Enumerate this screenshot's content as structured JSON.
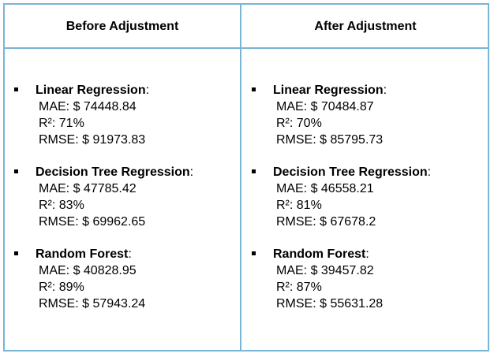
{
  "headers": {
    "before": "Before Adjustment",
    "after": "After Adjustment"
  },
  "before": [
    {
      "name": "Linear Regression",
      "colon": ":",
      "mae": "MAE: $ 74448.84",
      "r2": "R²: 71%",
      "rmse": "RMSE: $ 91973.83"
    },
    {
      "name": "Decision Tree Regression",
      "colon": ":",
      "mae": "MAE: $ 47785.42",
      "r2": "R²: 83%",
      "rmse": "RMSE: $ 69962.65"
    },
    {
      "name": "Random Forest",
      "colon": ":",
      "mae": "MAE: $ 40828.95",
      "r2": "R²: 89%",
      "rmse": "RMSE: $ 57943.24"
    }
  ],
  "after": [
    {
      "name": "Linear Regression",
      "colon": ":",
      "mae": "MAE: $ 70484.87",
      "r2": "R²: 70%",
      "rmse": "RMSE: $ 85795.73"
    },
    {
      "name": "Decision Tree Regression",
      "colon": ":",
      "mae": "MAE: $ 46558.21",
      "r2": "R²: 81%",
      "rmse": "RMSE: $ 67678.2"
    },
    {
      "name": "Random Forest",
      "colon": ":",
      "mae": "MAE: $ 39457.82",
      "r2": "R²: 87%",
      "rmse": "RMSE: $ 55631.28"
    }
  ],
  "colors": {
    "border": "#7ab4d6",
    "text": "#000000"
  }
}
